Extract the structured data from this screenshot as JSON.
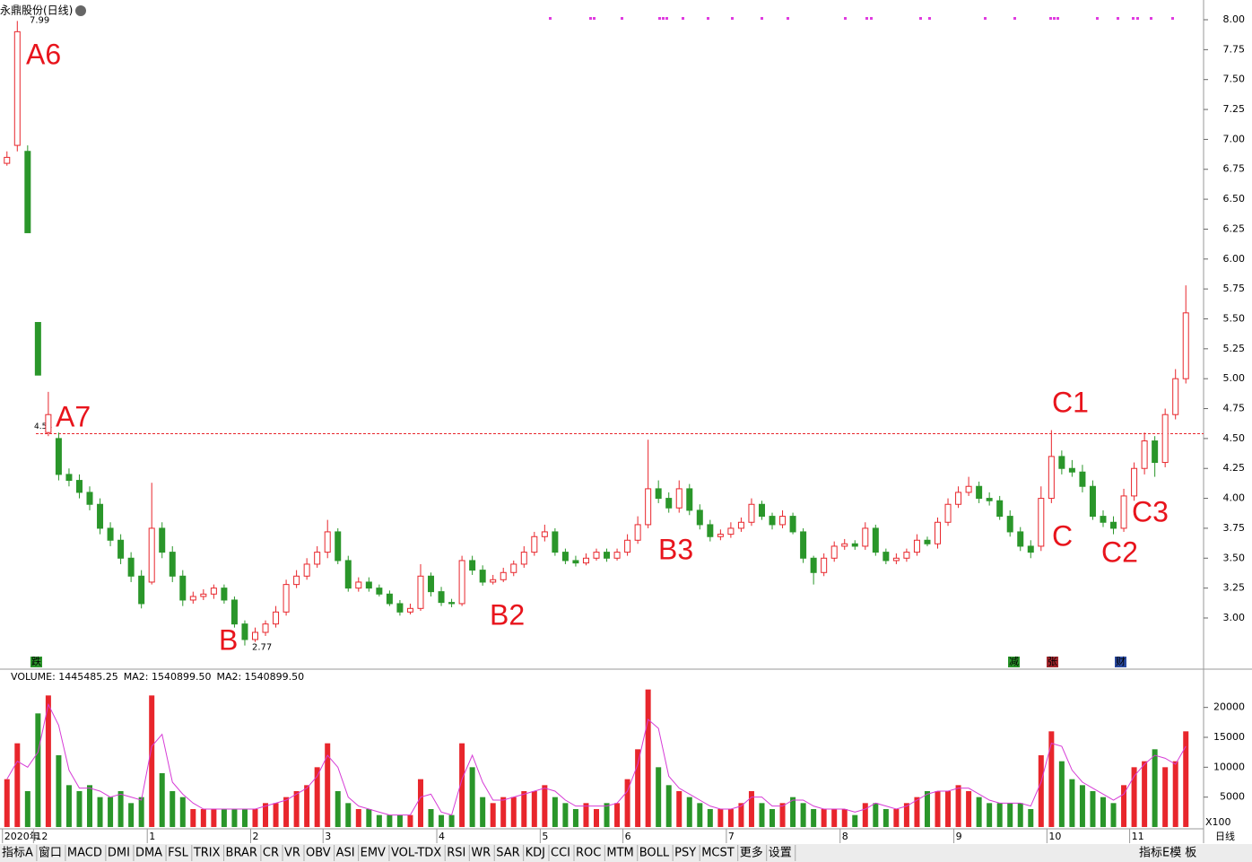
{
  "header": {
    "title": "永鼎股份(日线)"
  },
  "chart_data": [
    {
      "type": "candlestick",
      "categories": [
        "2020年",
        null,
        null,
        "12",
        null,
        null,
        null,
        null,
        null,
        null,
        null,
        null,
        null,
        null,
        "1",
        null,
        null,
        null,
        null,
        null,
        null,
        null,
        null,
        null,
        "2",
        null,
        null,
        null,
        null,
        null,
        null,
        "3",
        null,
        null,
        null,
        null,
        null,
        null,
        null,
        null,
        null,
        null,
        "4",
        null,
        null,
        null,
        null,
        null,
        null,
        null,
        null,
        null,
        "5",
        null,
        null,
        null,
        null,
        null,
        null,
        null,
        "6",
        null,
        null,
        null,
        null,
        null,
        null,
        null,
        null,
        null,
        "7",
        null,
        null,
        null,
        null,
        null,
        null,
        null,
        null,
        null,
        null,
        "8",
        null,
        null,
        null,
        null,
        null,
        null,
        null,
        null,
        null,
        null,
        "9",
        null,
        null,
        null,
        null,
        null,
        null,
        null,
        null,
        "10",
        null,
        null,
        null,
        null,
        null,
        null,
        null,
        "11",
        null,
        null,
        null,
        null,
        null
      ],
      "open": [
        6.8,
        6.95,
        6.9,
        5.47,
        4.55,
        4.5,
        4.2,
        4.15,
        4.05,
        3.95,
        3.75,
        3.65,
        3.5,
        3.35,
        3.3,
        3.75,
        3.55,
        3.35,
        3.15,
        3.18,
        3.2,
        3.25,
        3.15,
        2.95,
        2.82,
        2.88,
        2.95,
        3.05,
        3.28,
        3.35,
        3.45,
        3.55,
        3.72,
        3.48,
        3.25,
        3.3,
        3.25,
        3.2,
        3.12,
        3.05,
        3.08,
        3.35,
        3.22,
        3.13,
        3.12,
        3.48,
        3.4,
        3.3,
        3.32,
        3.38,
        3.45,
        3.55,
        3.68,
        3.72,
        3.55,
        3.48,
        3.46,
        3.5,
        3.55,
        3.5,
        3.55,
        3.65,
        3.78,
        4.08,
        4.0,
        3.92,
        4.08,
        3.9,
        3.78,
        3.68,
        3.7,
        3.75,
        3.8,
        3.95,
        3.85,
        3.78,
        3.85,
        3.72,
        3.5,
        3.38,
        3.5,
        3.6,
        3.62,
        3.6,
        3.75,
        3.55,
        3.48,
        3.5,
        3.55,
        3.65,
        3.62,
        3.8,
        3.95,
        4.05,
        4.1,
        4.0,
        3.98,
        3.85,
        3.72,
        3.6,
        3.6,
        4.0,
        4.35,
        4.25,
        4.22,
        4.1,
        3.85,
        3.8,
        3.75,
        4.02,
        4.25,
        4.48,
        4.3,
        4.7,
        5.0
      ],
      "high": [
        6.9,
        7.99,
        6.95,
        5.47,
        4.89,
        4.55,
        4.25,
        4.2,
        4.1,
        4.0,
        3.8,
        3.7,
        3.55,
        3.4,
        4.13,
        3.8,
        3.6,
        3.4,
        3.22,
        3.24,
        3.28,
        3.28,
        3.18,
        2.98,
        2.92,
        2.98,
        3.1,
        3.32,
        3.4,
        3.5,
        3.6,
        3.82,
        3.75,
        3.52,
        3.34,
        3.34,
        3.28,
        3.23,
        3.15,
        3.12,
        3.45,
        3.38,
        3.26,
        3.16,
        3.52,
        3.52,
        3.44,
        3.36,
        3.42,
        3.48,
        3.6,
        3.72,
        3.78,
        3.75,
        3.58,
        3.52,
        3.54,
        3.58,
        3.58,
        3.58,
        3.7,
        3.85,
        4.49,
        4.15,
        4.05,
        4.15,
        4.12,
        3.95,
        3.82,
        3.74,
        3.8,
        3.84,
        4.0,
        3.98,
        3.88,
        3.9,
        3.88,
        3.75,
        3.52,
        3.54,
        3.64,
        3.66,
        3.65,
        3.8,
        3.78,
        3.58,
        3.54,
        3.58,
        3.7,
        3.68,
        3.84,
        4.0,
        4.1,
        4.18,
        4.14,
        4.05,
        4.02,
        3.9,
        3.76,
        3.65,
        4.1,
        4.57,
        4.4,
        4.32,
        4.28,
        4.15,
        3.9,
        3.85,
        4.08,
        4.3,
        4.55,
        4.52,
        4.75,
        5.08,
        5.78
      ],
      "low": [
        6.78,
        6.9,
        6.22,
        5.03,
        4.52,
        4.15,
        4.1,
        4.0,
        3.9,
        3.7,
        3.6,
        3.45,
        3.3,
        3.08,
        3.28,
        3.5,
        3.3,
        3.1,
        3.12,
        3.15,
        3.16,
        3.12,
        2.92,
        2.77,
        2.8,
        2.85,
        2.92,
        3.02,
        3.25,
        3.32,
        3.42,
        3.5,
        3.45,
        3.22,
        3.22,
        3.22,
        3.18,
        3.1,
        3.02,
        3.03,
        3.06,
        3.18,
        3.1,
        3.09,
        3.1,
        3.36,
        3.27,
        3.28,
        3.3,
        3.35,
        3.42,
        3.52,
        3.64,
        3.52,
        3.45,
        3.43,
        3.44,
        3.48,
        3.47,
        3.48,
        3.52,
        3.62,
        3.75,
        3.96,
        3.88,
        3.88,
        3.86,
        3.74,
        3.64,
        3.65,
        3.67,
        3.72,
        3.77,
        3.82,
        3.74,
        3.75,
        3.7,
        3.46,
        3.28,
        3.35,
        3.47,
        3.57,
        3.57,
        3.57,
        3.52,
        3.45,
        3.45,
        3.47,
        3.52,
        3.6,
        3.58,
        3.77,
        3.92,
        4.02,
        3.96,
        3.94,
        3.82,
        3.68,
        3.56,
        3.5,
        3.56,
        3.96,
        4.2,
        4.18,
        4.05,
        3.82,
        3.76,
        3.7,
        3.72,
        3.98,
        4.2,
        4.18,
        4.26,
        4.66,
        4.96
      ],
      "close": [
        6.85,
        7.9,
        6.22,
        5.03,
        4.7,
        4.2,
        4.15,
        4.05,
        3.95,
        3.75,
        3.65,
        3.5,
        3.35,
        3.12,
        3.75,
        3.55,
        3.35,
        3.15,
        3.18,
        3.2,
        3.25,
        3.15,
        2.95,
        2.82,
        2.88,
        2.95,
        3.05,
        3.28,
        3.35,
        3.45,
        3.55,
        3.72,
        3.48,
        3.25,
        3.3,
        3.25,
        3.2,
        3.12,
        3.05,
        3.08,
        3.35,
        3.22,
        3.13,
        3.12,
        3.48,
        3.4,
        3.3,
        3.32,
        3.38,
        3.45,
        3.55,
        3.68,
        3.72,
        3.55,
        3.48,
        3.46,
        3.5,
        3.55,
        3.5,
        3.55,
        3.65,
        3.78,
        4.08,
        4.0,
        3.92,
        4.08,
        3.9,
        3.78,
        3.68,
        3.7,
        3.75,
        3.8,
        3.95,
        3.85,
        3.78,
        3.85,
        3.72,
        3.5,
        3.38,
        3.5,
        3.6,
        3.62,
        3.6,
        3.75,
        3.55,
        3.48,
        3.5,
        3.55,
        3.65,
        3.62,
        3.8,
        3.95,
        4.05,
        4.1,
        4.0,
        3.98,
        3.85,
        3.72,
        3.6,
        3.55,
        4.0,
        4.35,
        4.25,
        4.22,
        4.1,
        3.85,
        3.8,
        3.75,
        4.02,
        4.25,
        4.48,
        4.3,
        4.7,
        5.0,
        5.55
      ],
      "up_color": "#e8262c",
      "down_color": "#2a962a",
      "ylim": [
        2.58,
        8.135
      ],
      "yticks": [
        {
          "value": 3,
          "label": "3.00"
        },
        {
          "value": 3.25,
          "label": "3.25"
        },
        {
          "value": 3.5,
          "label": "3.50"
        },
        {
          "value": 3.75,
          "label": "3.75"
        },
        {
          "value": 4,
          "label": "4.00"
        },
        {
          "value": 4.25,
          "label": "4.25"
        },
        {
          "value": 4.5,
          "label": "4.50"
        },
        {
          "value": 4.75,
          "label": "4.75"
        },
        {
          "value": 5,
          "label": "5.00"
        },
        {
          "value": 5.25,
          "label": "5.25"
        },
        {
          "value": 5.5,
          "label": "5.50"
        },
        {
          "value": 5.75,
          "label": "5.75"
        },
        {
          "value": 6,
          "label": "6.00"
        },
        {
          "value": 6.25,
          "label": "6.25"
        },
        {
          "value": 6.5,
          "label": "6.50"
        },
        {
          "value": 6.75,
          "label": "6.75"
        },
        {
          "value": 7,
          "label": "7.00"
        },
        {
          "value": 7.25,
          "label": "7.25"
        },
        {
          "value": 7.5,
          "label": "7.50"
        },
        {
          "value": 7.75,
          "label": "7.75"
        },
        {
          "value": 8,
          "label": "8.00"
        }
      ],
      "reference_line": {
        "value": 4.54,
        "label": "4.54",
        "color": "#e8262c"
      },
      "high_marker": {
        "value": 7.99,
        "label": "7.99"
      },
      "low_marker": {
        "value": 2.77,
        "label": "2.77"
      },
      "annotations": [
        "A6",
        "A7",
        "B",
        "B2",
        "B3",
        "C",
        "C1",
        "C2",
        "C3"
      ],
      "event_icons": [
        "跌",
        "减",
        "张",
        "财"
      ]
    },
    {
      "type": "bar",
      "legend": [
        "VOLUME: 1445485.25",
        "MA2: 1540899.50",
        "MA2: 1540899.50"
      ],
      "series": [
        {
          "color": "#e8262c",
          "values": [
            8000,
            14000,
            6000,
            19000,
            22000,
            12000,
            7000,
            6000,
            7000,
            5000,
            5000,
            6000,
            4000,
            5000,
            22000,
            9000,
            6000,
            5000,
            3000,
            3000,
            3000,
            3000,
            3000,
            3000,
            3000,
            4000,
            4000,
            5000,
            6000,
            7000,
            10000,
            14000,
            6000,
            4000,
            3000,
            3000,
            2000,
            2000,
            2000,
            2000,
            8000,
            3000,
            2000,
            2000,
            14000,
            10000,
            5000,
            4000,
            5000,
            5000,
            6000,
            6000,
            7000,
            5000,
            4000,
            3000,
            4000,
            3000,
            4000,
            4000,
            8000,
            13000,
            23000,
            10000,
            7000,
            6000,
            5000,
            4000,
            3000,
            3000,
            3000,
            4000,
            6000,
            4000,
            3000,
            4000,
            5000,
            4000,
            3000,
            3000,
            3000,
            3000,
            2000,
            4000,
            4000,
            3000,
            3000,
            4000,
            5000,
            6000,
            6000,
            6000,
            7000,
            6000,
            5000,
            4000,
            4000,
            4000,
            4000,
            3000,
            12000,
            16000,
            11000,
            8000,
            7000,
            6000,
            5000,
            4000,
            7000,
            10000,
            11000,
            13000,
            10000,
            11000,
            16000
          ]
        },
        {
          "color": "#d63cd6",
          "values": [
            8000,
            11000,
            10000,
            12500,
            20500,
            17000,
            9500,
            6500,
            6500,
            6000,
            5000,
            5500,
            5000,
            4500,
            13500,
            15500,
            7500,
            5500,
            4000,
            3000,
            3000,
            3000,
            3000,
            3000,
            3000,
            3500,
            4000,
            4500,
            5500,
            6500,
            8500,
            12000,
            10000,
            5000,
            3500,
            3000,
            2500,
            2000,
            2000,
            2000,
            5000,
            5500,
            2500,
            2000,
            8000,
            12000,
            7500,
            4500,
            4500,
            5000,
            5500,
            6000,
            6500,
            6000,
            4500,
            3500,
            3500,
            3500,
            3500,
            4000,
            6000,
            10500,
            18000,
            16500,
            8500,
            6500,
            5500,
            4500,
            3500,
            3000,
            3000,
            3500,
            5000,
            5000,
            3500,
            3500,
            4500,
            4500,
            3500,
            3000,
            3000,
            3000,
            2500,
            3000,
            4000,
            3500,
            3000,
            3500,
            4500,
            5500,
            6000,
            6000,
            6500,
            6500,
            5500,
            4500,
            4000,
            4000,
            4000,
            3500,
            7500,
            14000,
            13500,
            9500,
            7500,
            6500,
            5500,
            4500,
            5500,
            8500,
            10500,
            12000,
            11500,
            10500,
            13500
          ]
        }
      ],
      "ylim": [
        0,
        24900
      ],
      "yticks": [
        5000,
        10000,
        15000,
        20000
      ],
      "unit_label": "X100",
      "period_label": "日线"
    }
  ],
  "tabs": [
    "指标A",
    "窗口",
    "MACD",
    "DMI",
    "DMA",
    "FSL",
    "TRIX",
    "BRAR",
    "CR",
    "VR",
    "OBV",
    "ASI",
    "EMV",
    "VOL-TDX",
    "RSI",
    "WR",
    "SAR",
    "KDJ",
    "CCI",
    "ROC",
    "MTM",
    "BOLL",
    "PSY",
    "MCST",
    "更多",
    "设置"
  ],
  "tabs_right": [
    "指标E模",
    "板"
  ]
}
